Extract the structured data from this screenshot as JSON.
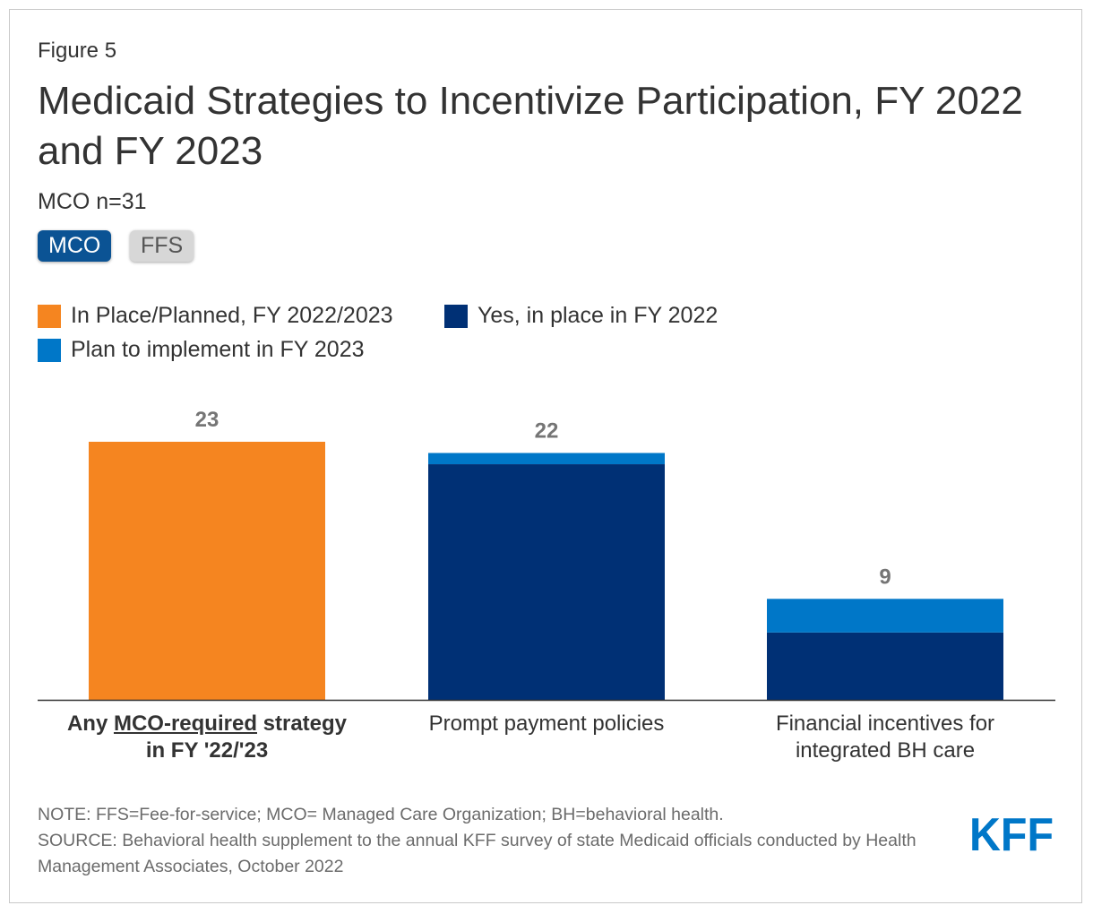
{
  "figure_label": "Figure 5",
  "title": "Medicaid Strategies to Incentivize Participation, FY 2022 and FY 2023",
  "subtitle": "MCO n=31",
  "toggles": {
    "mco": "MCO",
    "ffs": "FFS"
  },
  "legend": [
    {
      "label": "In Place/Planned, FY 2022/2023",
      "color": "#f58520"
    },
    {
      "label": "Yes, in place in FY 2022",
      "color": "#003075"
    },
    {
      "label": "Plan to implement in FY 2023",
      "color": "#0077c8"
    }
  ],
  "chart_data": {
    "type": "bar",
    "stacked": true,
    "categories": [
      "Any MCO-required strategy in FY '22/'23",
      "Prompt payment policies",
      "Financial incentives for integrated BH care"
    ],
    "category_lines": [
      {
        "prefix": "Any ",
        "underline": "MCO-required",
        "suffix": " strategy",
        "line2": "in FY '22/'23"
      },
      {
        "line1": "Prompt payment policies"
      },
      {
        "line1": "Financial incentives for",
        "line2": "integrated BH care"
      }
    ],
    "series": [
      {
        "name": "In Place/Planned, FY 2022/2023",
        "color": "#f58520",
        "values": [
          23,
          0,
          0
        ]
      },
      {
        "name": "Yes, in place in FY 2022",
        "color": "#003075",
        "values": [
          0,
          21,
          6
        ]
      },
      {
        "name": "Plan to implement in FY 2023",
        "color": "#0077c8",
        "values": [
          0,
          1,
          3
        ]
      }
    ],
    "totals": [
      23,
      22,
      9
    ],
    "ylim": [
      0,
      23
    ],
    "title": "Medicaid Strategies to Incentivize Participation, FY 2022 and FY 2023",
    "xlabel": "",
    "ylabel": ""
  },
  "note": "NOTE: FFS=Fee-for-service; MCO= Managed Care Organization; BH=behavioral health.",
  "source": "SOURCE: Behavioral health supplement to the annual KFF survey of state Medicaid officials conducted by Health Management Associates, October 2022",
  "logo_text": "KFF",
  "logo_color": "#0077c8"
}
